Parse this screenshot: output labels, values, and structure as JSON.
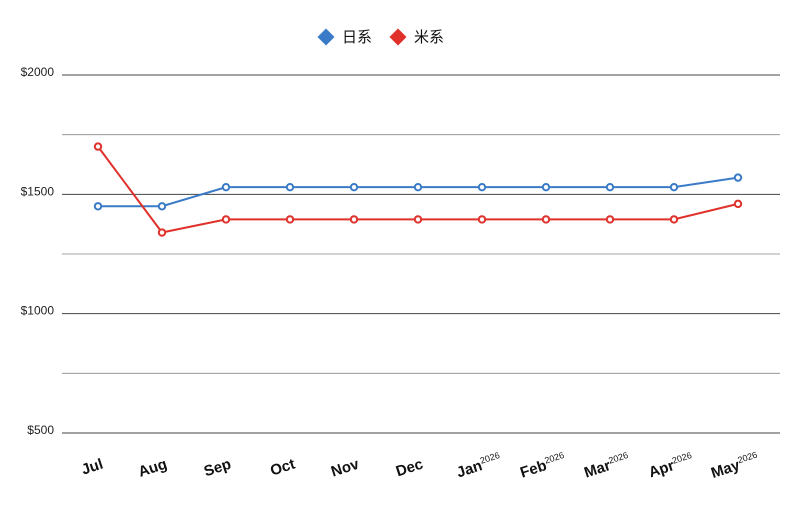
{
  "chart_data": {
    "type": "line",
    "categories": [
      "Jul",
      "Aug",
      "Sep",
      "Oct",
      "Nov",
      "Dec",
      "Jan",
      "Feb",
      "Mar",
      "Apr",
      "May"
    ],
    "category_superscripts": [
      "",
      "",
      "",
      "",
      "",
      "",
      "2026",
      "2026",
      "2026",
      "2026",
      "2026"
    ],
    "series": [
      {
        "name": "日系",
        "color": "#3a7bc8",
        "values": [
          1450,
          1450,
          1530,
          1530,
          1530,
          1530,
          1530,
          1530,
          1530,
          1530,
          1570
        ]
      },
      {
        "name": "米系",
        "color": "#e0302a",
        "values": [
          1700,
          1340,
          1395,
          1395,
          1395,
          1395,
          1395,
          1395,
          1395,
          1395,
          1460
        ]
      }
    ],
    "y_ticks": [
      500,
      1000,
      1500,
      2000
    ],
    "y_tick_labels": [
      "$500",
      "$1000",
      "$1500",
      "$2000"
    ],
    "ylim": [
      500,
      2000
    ],
    "y_minor_step": 250,
    "grid": true,
    "legend_position": "top-center",
    "legend_marker": "diamond"
  }
}
